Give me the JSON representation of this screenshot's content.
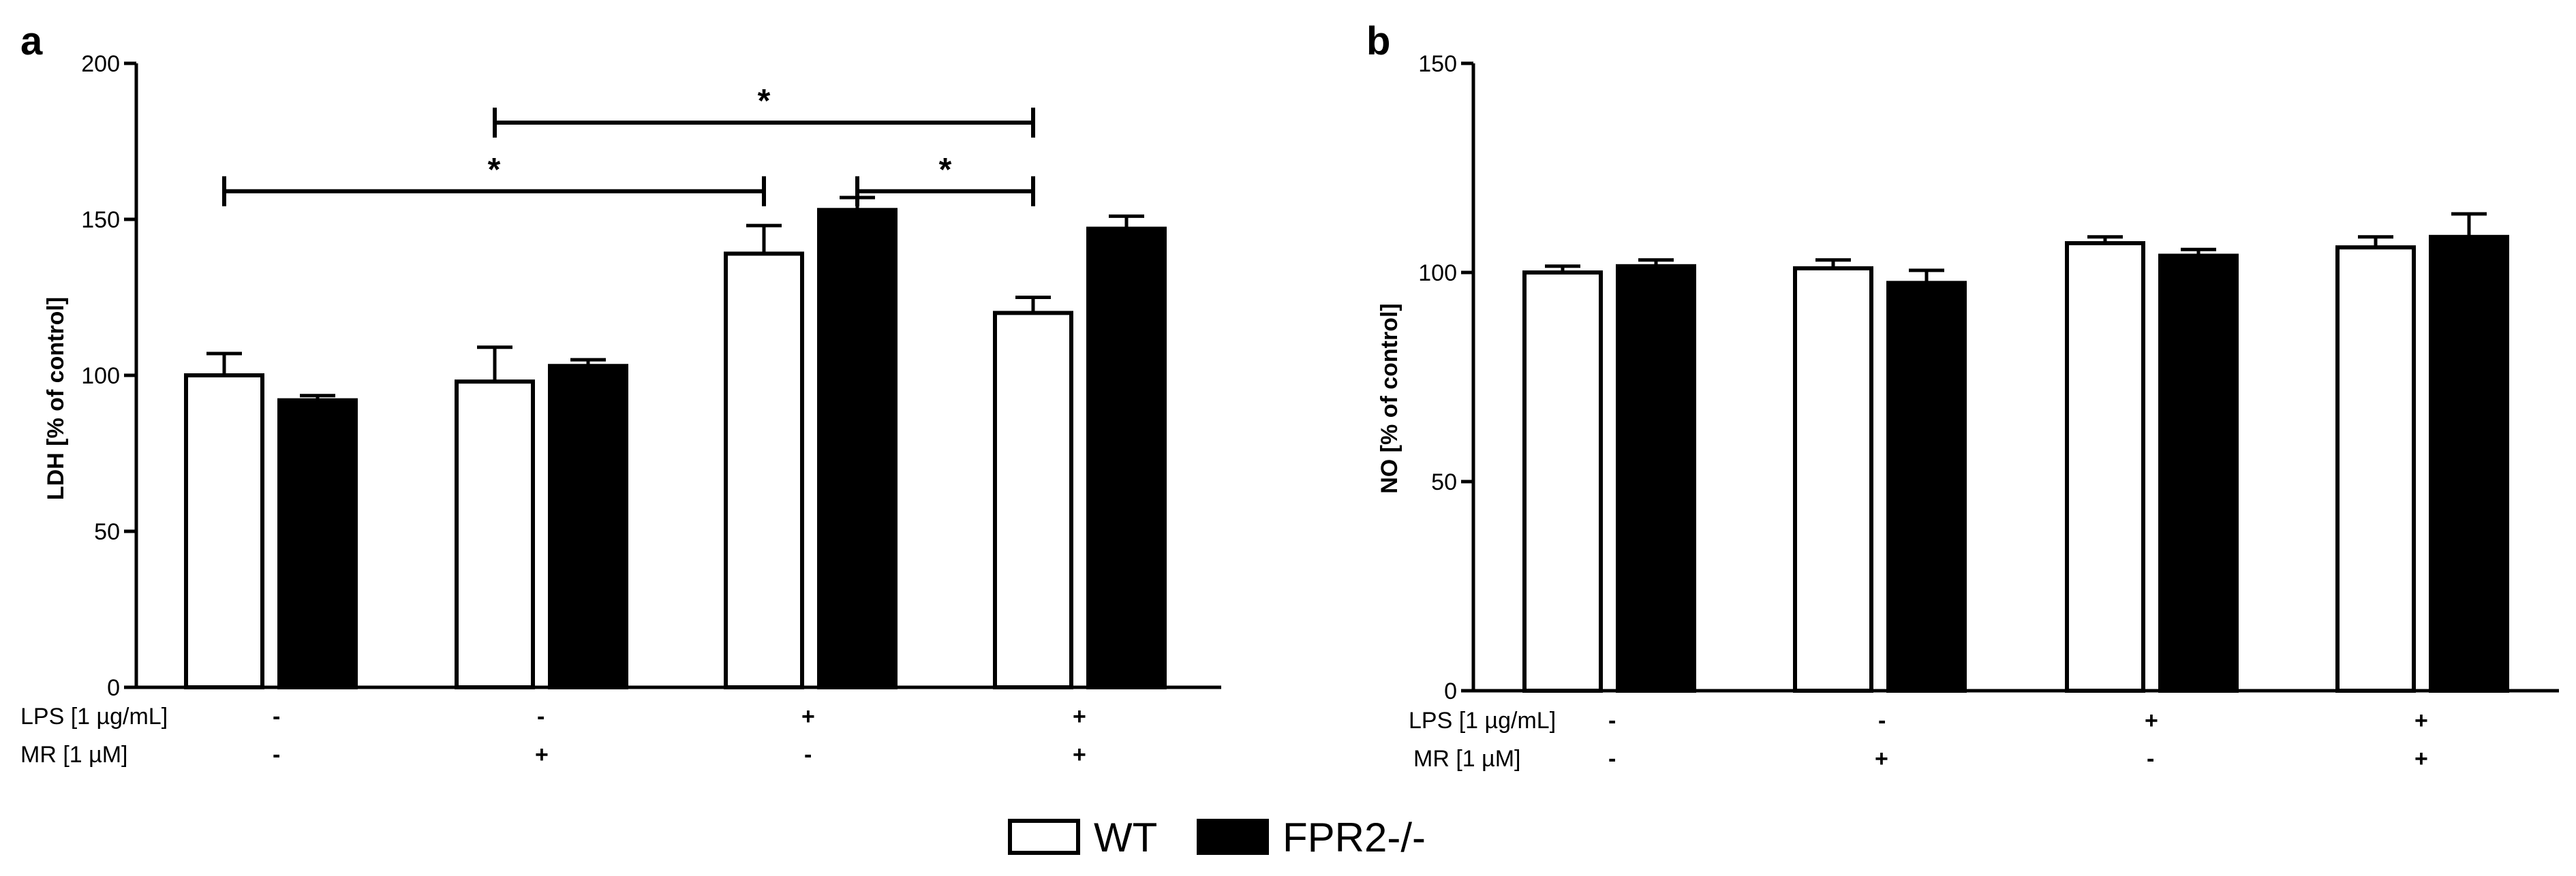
{
  "legend": {
    "items": [
      {
        "label": "WT",
        "fill": "#ffffff"
      },
      {
        "label": "FPR2-/-",
        "fill": "#000000"
      }
    ]
  },
  "conditions": {
    "lps_label": "LPS [1 µg/mL]",
    "mr_label": "MR [1 µM]",
    "lps": [
      "-",
      "-",
      "+",
      "+"
    ],
    "mr": [
      "-",
      "+",
      "-",
      "+"
    ]
  },
  "colors": {
    "wt": "#ffffff",
    "fpr2": "#000000",
    "axis": "#000000"
  },
  "chart_data": [
    {
      "type": "bar",
      "panel": "a",
      "ylabel": "LDH [% of control]",
      "ylim": [
        0,
        200
      ],
      "yticks": [
        0,
        50,
        100,
        150,
        200
      ],
      "categories": [
        "1",
        "2",
        "3",
        "4"
      ],
      "series": [
        {
          "name": "WT",
          "values": [
            100,
            98,
            139,
            120
          ],
          "errors": [
            7,
            11,
            9,
            5
          ]
        },
        {
          "name": "FPR2-/-",
          "values": [
            92,
            103,
            153,
            147
          ],
          "errors": [
            1.5,
            2,
            4,
            4
          ]
        }
      ],
      "significance": [
        {
          "from": [
            0,
            "WT"
          ],
          "to": [
            2,
            "WT"
          ],
          "label": "*",
          "level": 159
        },
        {
          "from": [
            2,
            "FPR2-/-"
          ],
          "to": [
            3,
            "WT"
          ],
          "label": "*",
          "level": 159
        },
        {
          "from": [
            1,
            "WT"
          ],
          "to": [
            3,
            "WT"
          ],
          "label": "*",
          "level": 181
        }
      ]
    },
    {
      "type": "bar",
      "panel": "b",
      "ylabel": "NO [% of control]",
      "ylim": [
        0,
        150
      ],
      "yticks": [
        0,
        50,
        100,
        150
      ],
      "categories": [
        "1",
        "2",
        "3",
        "4"
      ],
      "series": [
        {
          "name": "WT",
          "values": [
            100,
            101,
            107,
            106
          ],
          "errors": [
            1.5,
            2,
            1.5,
            2.5
          ]
        },
        {
          "name": "FPR2-/-",
          "values": [
            101.5,
            97.5,
            104,
            108.5
          ],
          "errors": [
            1.5,
            3,
            1.5,
            5.5
          ]
        }
      ],
      "significance": []
    }
  ]
}
